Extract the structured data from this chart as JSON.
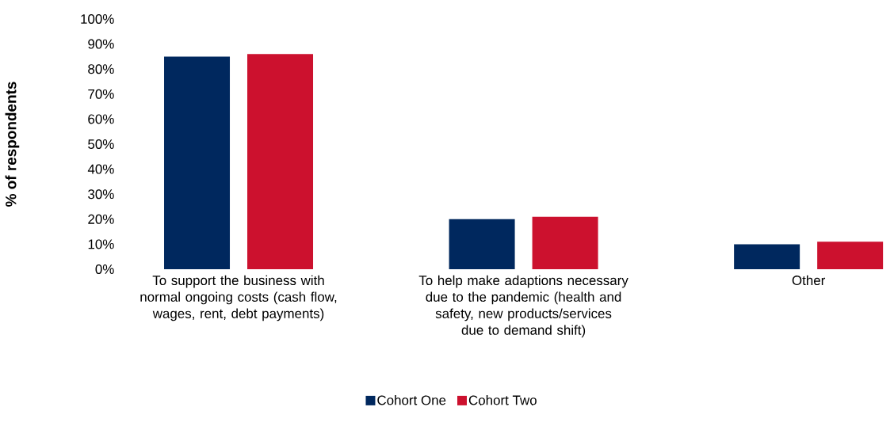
{
  "chart_data": {
    "type": "bar",
    "ylabel": "% of respondents",
    "categories": [
      "To support the business with normal ongoing costs (cash flow, wages, rent, debt payments)",
      "To help make adaptions necessary due to the pandemic (health and safety, new products/services due to demand shift)",
      "Other"
    ],
    "series": [
      {
        "name": "Cohort One",
        "color": "#00285e",
        "values": [
          85,
          20,
          10
        ]
      },
      {
        "name": "Cohort Two",
        "color": "#cc112e",
        "values": [
          86,
          21,
          11
        ]
      }
    ],
    "ylim": [
      0,
      100
    ],
    "yticks": [
      {
        "value": 0,
        "label": "0%"
      },
      {
        "value": 10,
        "label": "10%"
      },
      {
        "value": 20,
        "label": "20%"
      },
      {
        "value": 30,
        "label": "30%"
      },
      {
        "value": 40,
        "label": "40%"
      },
      {
        "value": 50,
        "label": "50%"
      },
      {
        "value": 60,
        "label": "60%"
      },
      {
        "value": 70,
        "label": "70%"
      },
      {
        "value": 80,
        "label": "80%"
      },
      {
        "value": 90,
        "label": "90%"
      },
      {
        "value": 100,
        "label": "100%"
      }
    ],
    "legend": "bottom"
  }
}
